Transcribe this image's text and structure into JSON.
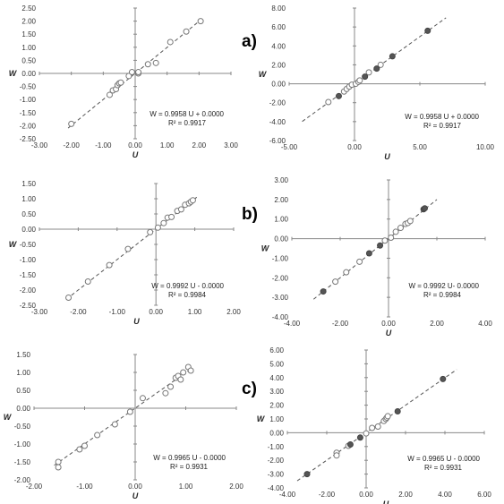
{
  "panel_letters": [
    "a)",
    "b)",
    "c)"
  ],
  "chart_data": [
    {
      "type": "scatter",
      "xlabel": "U",
      "ylabel": "W",
      "xlim": [
        -3,
        3
      ],
      "ylim": [
        -2.5,
        2.5
      ],
      "xticks": [
        "-3.00",
        "-2.00",
        "-1.00",
        "0.00",
        "1.00",
        "2.00",
        "3.00"
      ],
      "yticks": [
        "-2.50",
        "-2.00",
        "-1.50",
        "-1.00",
        "-0.50",
        "0.00",
        "0.50",
        "1.00",
        "1.50",
        "2.00",
        "2.50"
      ],
      "equation": "W = 0.9958 U + 0.0000",
      "r2": "R² = 0.9917",
      "trend": {
        "slope": 0.9958,
        "intercept": 0.0
      },
      "series": [
        {
          "marker": "open",
          "points": [
            [
              -2.0,
              -1.93
            ],
            [
              -0.8,
              -0.82
            ],
            [
              -0.7,
              -0.65
            ],
            [
              -0.6,
              -0.6
            ],
            [
              -0.55,
              -0.45
            ],
            [
              -0.5,
              -0.38
            ],
            [
              -0.45,
              -0.35
            ],
            [
              -0.2,
              -0.1
            ],
            [
              0.1,
              0.0
            ],
            [
              0.1,
              0.05
            ],
            [
              -0.1,
              0.05
            ],
            [
              0.4,
              0.35
            ],
            [
              0.65,
              0.4
            ],
            [
              1.1,
              1.2
            ],
            [
              1.6,
              1.6
            ],
            [
              2.05,
              2.0
            ]
          ]
        }
      ]
    },
    {
      "type": "scatter",
      "xlabel": "U",
      "ylabel": "W",
      "xlim": [
        -5,
        10
      ],
      "ylim": [
        -6,
        8
      ],
      "xticks": [
        "-5.00",
        "0.00",
        "5.00",
        "10.00"
      ],
      "yticks": [
        "-6.00",
        "-4.00",
        "-2.00",
        "0.00",
        "2.00",
        "4.00",
        "6.00",
        "8.00"
      ],
      "equation": "W = 0.9958 U + 0.0000",
      "r2": "R² = 0.9917",
      "trend": {
        "slope": 0.9958,
        "intercept": 0.0
      },
      "series": [
        {
          "marker": "open",
          "points": [
            [
              -2.0,
              -1.93
            ],
            [
              -0.8,
              -0.82
            ],
            [
              -0.6,
              -0.55
            ],
            [
              -0.4,
              -0.3
            ],
            [
              -0.2,
              -0.1
            ],
            [
              0.1,
              0.0
            ],
            [
              0.3,
              0.2
            ],
            [
              0.4,
              0.35
            ],
            [
              1.1,
              1.2
            ],
            [
              2.0,
              2.0
            ]
          ]
        },
        {
          "marker": "filled",
          "points": [
            [
              -1.2,
              -1.3
            ],
            [
              0.8,
              0.75
            ],
            [
              1.7,
              1.6
            ],
            [
              2.9,
              2.9
            ],
            [
              5.6,
              5.6
            ]
          ]
        }
      ]
    },
    {
      "type": "scatter",
      "xlabel": "U",
      "ylabel": "W",
      "xlim": [
        -3,
        2
      ],
      "ylim": [
        -2.5,
        1.5
      ],
      "xticks": [
        "-3.00",
        "-2.00",
        "-1.00",
        "0.00",
        "1.00",
        "2.00"
      ],
      "yticks": [
        "-2.50",
        "-2.00",
        "-1.50",
        "-1.00",
        "-0.50",
        "0.00",
        "0.50",
        "1.00",
        "1.50"
      ],
      "equation": "W = 0.9992 U - 0.0000",
      "r2": "R² = 0.9984",
      "trend": {
        "slope": 0.9992,
        "intercept": 0.0
      },
      "series": [
        {
          "marker": "open",
          "points": [
            [
              -2.25,
              -2.25
            ],
            [
              -1.75,
              -1.72
            ],
            [
              -1.2,
              -1.18
            ],
            [
              -0.72,
              -0.65
            ],
            [
              -0.15,
              -0.1
            ],
            [
              0.05,
              0.05
            ],
            [
              0.2,
              0.2
            ],
            [
              0.3,
              0.38
            ],
            [
              0.4,
              0.4
            ],
            [
              0.55,
              0.6
            ],
            [
              0.65,
              0.65
            ],
            [
              0.75,
              0.8
            ],
            [
              0.85,
              0.85
            ],
            [
              0.9,
              0.9
            ],
            [
              0.95,
              0.95
            ]
          ]
        }
      ]
    },
    {
      "type": "scatter",
      "xlabel": "U",
      "ylabel": "W",
      "xlim": [
        -4,
        4
      ],
      "ylim": [
        -4,
        3
      ],
      "xticks": [
        "-4.00",
        "-2.00",
        "0.00",
        "2.00",
        "4.00"
      ],
      "yticks": [
        "-4.00",
        "-3.00",
        "-2.00",
        "-1.00",
        "0.00",
        "1.00",
        "2.00",
        "3.00"
      ],
      "equation": "W = 0.9992 U- 0.0000",
      "r2": "R² = 0.9984",
      "trend": {
        "slope": 0.9992,
        "intercept": 0.0
      },
      "series": [
        {
          "marker": "open",
          "points": [
            [
              -2.2,
              -2.2
            ],
            [
              -1.75,
              -1.72
            ],
            [
              -1.2,
              -1.18
            ],
            [
              -0.15,
              -0.1
            ],
            [
              0.1,
              0.05
            ],
            [
              0.3,
              0.35
            ],
            [
              0.5,
              0.55
            ],
            [
              0.7,
              0.75
            ],
            [
              0.8,
              0.8
            ],
            [
              0.9,
              0.9
            ]
          ]
        },
        {
          "marker": "filled",
          "points": [
            [
              -2.7,
              -2.7
            ],
            [
              -0.8,
              -0.75
            ],
            [
              -0.35,
              -0.35
            ],
            [
              1.45,
              1.5
            ],
            [
              1.5,
              1.55
            ]
          ]
        }
      ]
    },
    {
      "type": "scatter",
      "xlabel": "U",
      "ylabel": "W",
      "xlim": [
        -2,
        2
      ],
      "ylim": [
        -2,
        1.5
      ],
      "xticks": [
        "-2.00",
        "-1.00",
        "0.00",
        "1.00",
        "2.00"
      ],
      "yticks": [
        "-2.00",
        "-1.50",
        "-1.00",
        "-0.50",
        "0.00",
        "0.50",
        "1.00",
        "1.50"
      ],
      "equation": "W = 0.9965 U - 0.0000",
      "r2": "R² = 0.9931",
      "trend": {
        "slope": 0.9965,
        "intercept": 0.0
      },
      "series": [
        {
          "marker": "open",
          "points": [
            [
              -1.52,
              -1.5
            ],
            [
              -1.52,
              -1.65
            ],
            [
              -1.1,
              -1.15
            ],
            [
              -1.0,
              -1.05
            ],
            [
              -0.75,
              -0.75
            ],
            [
              -0.4,
              -0.45
            ],
            [
              -0.1,
              -0.1
            ],
            [
              0.15,
              0.28
            ],
            [
              0.6,
              0.42
            ],
            [
              0.7,
              0.6
            ],
            [
              0.8,
              0.85
            ],
            [
              0.85,
              0.9
            ],
            [
              0.9,
              0.8
            ],
            [
              0.95,
              1.0
            ],
            [
              1.05,
              1.15
            ],
            [
              1.1,
              1.05
            ]
          ]
        }
      ]
    },
    {
      "type": "scatter",
      "xlabel": "U",
      "ylabel": "W",
      "xlim": [
        -4,
        6
      ],
      "ylim": [
        -4,
        6
      ],
      "xticks": [
        "-4.00",
        "-2.00",
        "0.00",
        "2.00",
        "4.00",
        "6.00"
      ],
      "yticks": [
        "-4.00",
        "-3.00",
        "-2.00",
        "-1.00",
        "0.00",
        "1.00",
        "2.00",
        "3.00",
        "4.00",
        "5.00",
        "6.00"
      ],
      "equation": "W = 0.9965 U - 0.0000",
      "r2": "R² = 0.9931",
      "trend": {
        "slope": 0.9965,
        "intercept": 0.0
      },
      "series": [
        {
          "marker": "open",
          "points": [
            [
              -1.5,
              -1.45
            ],
            [
              -1.5,
              -1.65
            ],
            [
              -0.9,
              -0.95
            ],
            [
              0.0,
              -0.05
            ],
            [
              0.3,
              0.35
            ],
            [
              0.9,
              0.85
            ],
            [
              1.0,
              1.0
            ],
            [
              1.05,
              1.1
            ],
            [
              1.1,
              1.2
            ],
            [
              0.6,
              0.45
            ]
          ]
        },
        {
          "marker": "filled",
          "points": [
            [
              -3.0,
              -3.0
            ],
            [
              -0.8,
              -0.85
            ],
            [
              -0.3,
              -0.35
            ],
            [
              1.6,
              1.55
            ],
            [
              3.9,
              3.9
            ]
          ]
        }
      ]
    }
  ]
}
